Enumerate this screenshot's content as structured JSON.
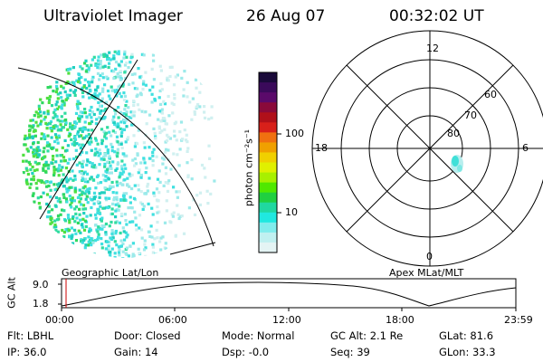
{
  "header": {
    "instrument": "Ultraviolet Imager",
    "date": "26 Aug 07",
    "time": "00:32:02 UT"
  },
  "colorbar": {
    "unit_label": "photon cm⁻²s⁻¹",
    "ticks": [
      "100",
      "10"
    ],
    "colors": [
      "#1a0a3a",
      "#3a0a5a",
      "#5a0a6a",
      "#8a0a3a",
      "#b0101a",
      "#d8201a",
      "#f07010",
      "#f0a000",
      "#f0d000",
      "#e0f000",
      "#a8f000",
      "#50e800",
      "#20d040",
      "#20d8a0",
      "#20e8e0",
      "#80ecec",
      "#c0f0f0",
      "#e4f4f4"
    ]
  },
  "polar_plot": {
    "mlt_labels": {
      "top": "12",
      "left": "18",
      "right": "6",
      "bottom": "0"
    },
    "lat_labels": [
      "60",
      "70",
      "80"
    ]
  },
  "timeline": {
    "y_axis_label": "GC Alt",
    "y_ticks": [
      "9.0",
      "1.8"
    ],
    "left_caption": "Geographic Lat/Lon",
    "right_caption": "Apex MLat/MLT",
    "x_ticks": [
      "00:00",
      "06:00",
      "12:00",
      "18:00",
      "23:59"
    ],
    "marker_color": "#cc0000"
  },
  "status": {
    "row1": [
      {
        "label": "Flt:",
        "value": "LBHL"
      },
      {
        "label": "Door:",
        "value": "Closed"
      },
      {
        "label": "Mode:",
        "value": "Normal"
      },
      {
        "label": "GC Alt:",
        "value": "2.1 Re"
      },
      {
        "label": "GLat:",
        "value": "81.6"
      }
    ],
    "row2": [
      {
        "label": "IP:",
        "value": "36.0"
      },
      {
        "label": "Gain:",
        "value": "14"
      },
      {
        "label": "Dsp:",
        "value": "-0.0"
      },
      {
        "label": "Seq:",
        "value": "39"
      },
      {
        "label": "GLon:",
        "value": "33.3"
      }
    ]
  }
}
